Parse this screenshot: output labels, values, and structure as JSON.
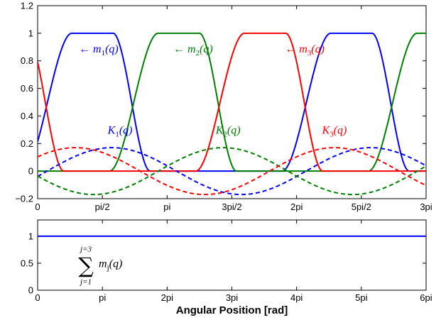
{
  "chart_data": [
    {
      "type": "line",
      "title": "",
      "xlabel": "",
      "ylabel": "",
      "xlim": [
        0,
        9.4248
      ],
      "ylim": [
        -0.2,
        1.2
      ],
      "x_ticks": [
        {
          "value": 0,
          "label": "0"
        },
        {
          "value": 1.5708,
          "label": "pi/2"
        },
        {
          "value": 3.1416,
          "label": "pi"
        },
        {
          "value": 4.7124,
          "label": "3pi/2"
        },
        {
          "value": 6.2832,
          "label": "2pi"
        },
        {
          "value": 7.854,
          "label": "5pi/2"
        },
        {
          "value": 9.4248,
          "label": "3pi"
        }
      ],
      "y_ticks": [
        {
          "value": -0.2,
          "label": "−0.2"
        },
        {
          "value": 0,
          "label": "0"
        },
        {
          "value": 0.2,
          "label": "0.2"
        },
        {
          "value": 0.4,
          "label": "0.4"
        },
        {
          "value": 0.6,
          "label": "0.6"
        },
        {
          "value": 0.8,
          "label": "0.8"
        },
        {
          "value": 1,
          "label": "1"
        },
        {
          "value": 1.2,
          "label": "1.2"
        }
      ],
      "grid": false,
      "series": [
        {
          "name": "m1(q)",
          "color": "#0000ff",
          "style": "solid",
          "phase": 0
        },
        {
          "name": "m2(q)",
          "color": "#008000",
          "style": "solid",
          "phase": 2.0944
        },
        {
          "name": "m3(q)",
          "color": "#ff0000",
          "style": "solid",
          "phase": 4.1888
        },
        {
          "name": "K1(q)",
          "color": "#0000ff",
          "style": "dashed",
          "amplitude": 0.17,
          "peak": 1.8
        },
        {
          "name": "K2(q)",
          "color": "#008000",
          "style": "dashed",
          "amplitude": 0.17,
          "peak": 4.5
        },
        {
          "name": "K3(q)",
          "color": "#ff0000",
          "style": "dashed",
          "amplitude": 0.17,
          "peak": 7.2
        }
      ],
      "annotations": [
        {
          "series": 0,
          "arrow": "←",
          "symbol": "m",
          "sub": "1",
          "arg": "(q)",
          "x": 1.0,
          "y": 0.86
        },
        {
          "series": 1,
          "arrow": "←",
          "symbol": "m",
          "sub": "2",
          "arg": "(q)",
          "x": 3.29,
          "y": 0.86
        },
        {
          "series": 2,
          "arrow": "←",
          "symbol": "m",
          "sub": "3",
          "arg": "(q)",
          "x": 6.0,
          "y": 0.86
        },
        {
          "series": 3,
          "arrow": "",
          "symbol": "K",
          "sub": "1",
          "arg": "(q)",
          "x": 1.7,
          "y": 0.27
        },
        {
          "series": 4,
          "arrow": "",
          "symbol": "K",
          "sub": "2",
          "arg": "(q)",
          "x": 4.32,
          "y": 0.27
        },
        {
          "series": 5,
          "arrow": "",
          "symbol": "K",
          "sub": "3",
          "arg": "(q)",
          "x": 6.9,
          "y": 0.27
        }
      ]
    },
    {
      "type": "line",
      "title": "",
      "xlabel": "Angular Position [rad]",
      "ylabel": "",
      "xlim": [
        0,
        18.85
      ],
      "ylim": [
        0,
        1.3
      ],
      "x_ticks": [
        {
          "value": 0,
          "label": "0"
        },
        {
          "value": 3.1416,
          "label": "pi"
        },
        {
          "value": 6.2832,
          "label": "2pi"
        },
        {
          "value": 9.4248,
          "label": "3pi"
        },
        {
          "value": 12.5664,
          "label": "4pi"
        },
        {
          "value": 15.708,
          "label": "5pi"
        },
        {
          "value": 18.8496,
          "label": "6pi"
        }
      ],
      "y_ticks": [
        {
          "value": 0,
          "label": "0"
        },
        {
          "value": 0.5,
          "label": "0.5"
        },
        {
          "value": 1,
          "label": "1"
        }
      ],
      "grid": false,
      "series": [
        {
          "name": "sum",
          "color": "#0000ff",
          "style": "solid",
          "x": [
            0,
            18.85
          ],
          "values": [
            1,
            1
          ]
        }
      ],
      "annotation": {
        "upper": "j=3",
        "lower": "j=1",
        "term_symbol": "m",
        "term_sub": "j",
        "term_arg": "(q)",
        "x": 2.0,
        "y": 0.4
      }
    }
  ]
}
